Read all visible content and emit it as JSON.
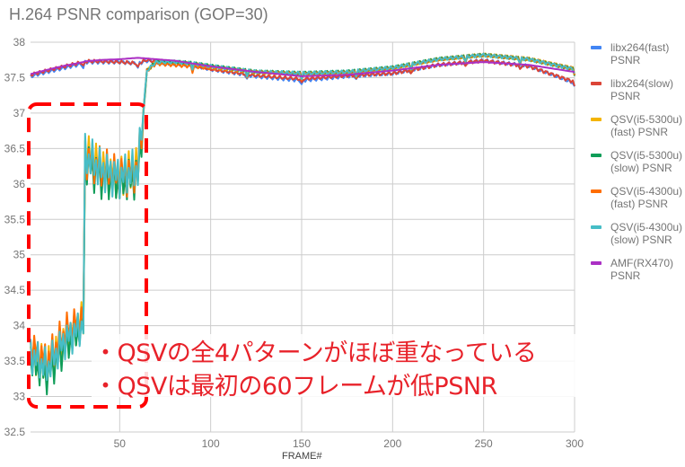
{
  "chart_data": {
    "type": "line",
    "title": "H.264 PSNR comparison (GOP=30)",
    "xlabel": "FRAME#",
    "ylabel": "",
    "xlim": [
      1,
      300
    ],
    "ylim": [
      32.5,
      38
    ],
    "x_ticks": [
      50,
      100,
      150,
      200,
      250,
      300
    ],
    "y_ticks": [
      32.5,
      33,
      33.5,
      34,
      34.5,
      35,
      35.5,
      36,
      36.5,
      37,
      37.5,
      38
    ],
    "grid": true,
    "legend_position": "right",
    "x": [
      1,
      10,
      20,
      30,
      31,
      40,
      50,
      60,
      65,
      70,
      80,
      90,
      100,
      125,
      150,
      175,
      200,
      225,
      250,
      275,
      300
    ],
    "series": [
      {
        "name": "libx264(fast) PSNR",
        "color": "#4285f4",
        "values": [
          37.52,
          37.58,
          37.64,
          37.7,
          37.72,
          37.72,
          37.72,
          37.7,
          37.74,
          37.72,
          37.7,
          37.68,
          37.62,
          37.52,
          37.46,
          37.52,
          37.56,
          37.68,
          37.74,
          37.66,
          37.42
        ]
      },
      {
        "name": "libx264(slow) PSNR",
        "color": "#db4437",
        "values": [
          37.54,
          37.6,
          37.66,
          37.72,
          37.73,
          37.73,
          37.72,
          37.7,
          37.75,
          37.72,
          37.7,
          37.68,
          37.62,
          37.53,
          37.48,
          37.53,
          37.56,
          37.68,
          37.74,
          37.66,
          37.44
        ]
      },
      {
        "name": "QSV(i5-5300u) (fast) PSNR",
        "color": "#f4b400",
        "values": [
          33.6,
          33.4,
          33.8,
          34.1,
          36.4,
          36.2,
          36.1,
          36.2,
          37.6,
          37.72,
          37.72,
          37.7,
          37.66,
          37.58,
          37.56,
          37.58,
          37.64,
          37.76,
          37.82,
          37.76,
          37.62
        ]
      },
      {
        "name": "QSV(i5-5300u) (slow) PSNR",
        "color": "#0f9d58",
        "values": [
          33.5,
          33.3,
          33.7,
          34.0,
          36.3,
          36.1,
          36.0,
          36.1,
          37.6,
          37.72,
          37.72,
          37.7,
          37.66,
          37.58,
          37.56,
          37.58,
          37.64,
          37.76,
          37.82,
          37.76,
          37.62
        ]
      },
      {
        "name": "QSV(i5-4300u) (fast) PSNR",
        "color": "#ff6d00",
        "values": [
          33.7,
          33.5,
          33.9,
          34.1,
          36.4,
          36.2,
          36.1,
          36.2,
          37.6,
          37.7,
          37.68,
          37.66,
          37.64,
          37.58,
          37.56,
          37.58,
          37.64,
          37.76,
          37.82,
          37.76,
          37.62
        ]
      },
      {
        "name": "QSV(i5-4300u) (slow) PSNR",
        "color": "#46bdc6",
        "values": [
          33.6,
          33.4,
          33.8,
          34.0,
          36.4,
          36.2,
          36.1,
          36.2,
          37.6,
          37.72,
          37.72,
          37.7,
          37.66,
          37.58,
          37.56,
          37.58,
          37.64,
          37.76,
          37.82,
          37.76,
          37.62
        ]
      },
      {
        "name": "AMF(RX470) PSNR",
        "color": "#ab30c4",
        "values": [
          37.55,
          37.61,
          37.67,
          37.72,
          37.73,
          37.75,
          37.76,
          37.78,
          37.77,
          37.76,
          37.74,
          37.7,
          37.66,
          37.58,
          37.52,
          37.54,
          37.6,
          37.68,
          37.72,
          37.68,
          37.58
        ]
      }
    ],
    "annotations": [
      "・QSVの全4パターンがほぼ重なっている",
      "・QSVは最初の60フレームが低PSNR"
    ],
    "highlight_box": {
      "x_range": [
        1,
        65
      ],
      "y_range": [
        32.8,
        37.1
      ],
      "style": "red dashed rounded"
    }
  },
  "header": {
    "title": "H.264 PSNR comparison (GOP=30)"
  },
  "axes": {
    "xlabel": "FRAME#"
  },
  "legend": {
    "items": [
      {
        "label": "libx264(fast)\nPSNR",
        "color": "#4285f4"
      },
      {
        "label": "libx264(slow)\nPSNR",
        "color": "#db4437"
      },
      {
        "label": "QSV(i5-5300u)\n(fast) PSNR",
        "color": "#f4b400"
      },
      {
        "label": "QSV(i5-5300u)\n(slow) PSNR",
        "color": "#0f9d58"
      },
      {
        "label": "QSV(i5-4300u)\n(fast) PSNR",
        "color": "#ff6d00"
      },
      {
        "label": "QSV(i5-4300u)\n(slow) PSNR",
        "color": "#46bdc6"
      },
      {
        "label": "AMF(RX470)\nPSNR",
        "color": "#ab30c4"
      }
    ]
  },
  "annotations": {
    "line1": "・QSVの全4パターンがほぼ重なっている",
    "line2": "・QSVは最初の60フレームが低PSNR"
  }
}
